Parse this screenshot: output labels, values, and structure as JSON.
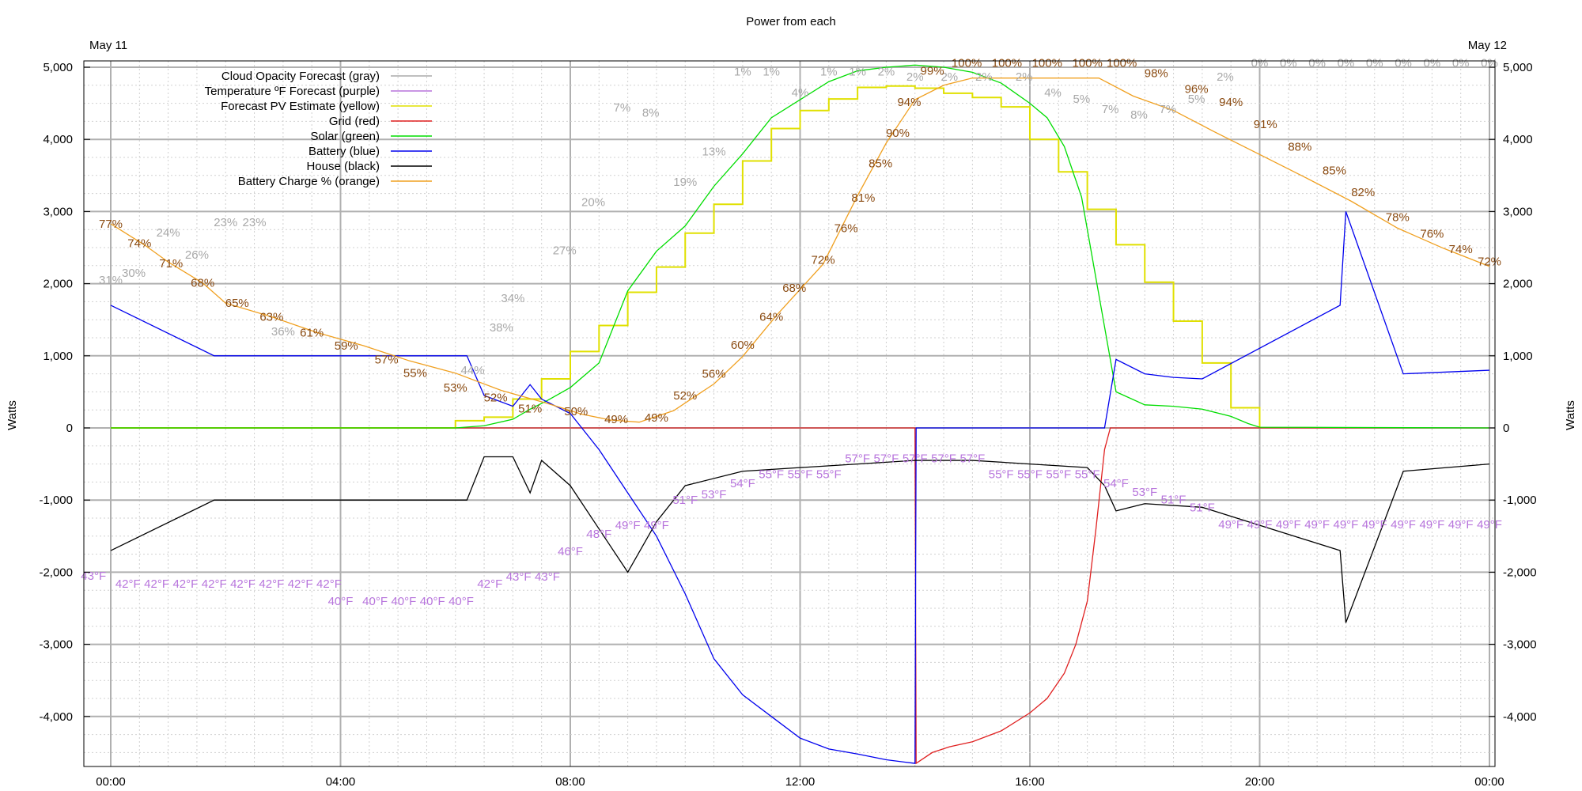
{
  "chart_data": {
    "type": "line",
    "title": "Power from each",
    "date_left": "May 11",
    "date_right": "May 12",
    "ylabel": "Watts",
    "ylim": [
      -4700,
      5050
    ],
    "xlim_hours": [
      0,
      24
    ],
    "y_ticks": [
      {
        "v": 5000,
        "label": "5,000"
      },
      {
        "v": 4000,
        "label": "4,000"
      },
      {
        "v": 3000,
        "label": "3,000"
      },
      {
        "v": 2000,
        "label": "2,000"
      },
      {
        "v": 1000,
        "label": "1,000"
      },
      {
        "v": 0,
        "label": "0"
      },
      {
        "v": -1000,
        "label": "-1,000"
      },
      {
        "v": -2000,
        "label": "-2,000"
      },
      {
        "v": -3000,
        "label": "-3,000"
      },
      {
        "v": -4000,
        "label": "-4,000"
      }
    ],
    "x_ticks": [
      {
        "h": 0,
        "label": "00:00"
      },
      {
        "h": 4,
        "label": "04:00"
      },
      {
        "h": 8,
        "label": "08:00"
      },
      {
        "h": 12,
        "label": "12:00"
      },
      {
        "h": 16,
        "label": "16:00"
      },
      {
        "h": 20,
        "label": "20:00"
      },
      {
        "h": 24,
        "label": "00:00"
      }
    ],
    "grid": true,
    "legend_position": "top-left",
    "series": [
      {
        "name": "Cloud Opacity Forecast (gray)",
        "color": "#aaaaaa",
        "kind": "step-labels"
      },
      {
        "name": "Temperature ºF Forecast (purple)",
        "color": "#b774dc",
        "kind": "step-labels"
      },
      {
        "name": "Forecast PV Estimate (yellow)",
        "color": "#e0e000",
        "kind": "step",
        "x": [
          0,
          6,
          6.5,
          7,
          7.5,
          8,
          8.5,
          9,
          9.5,
          10,
          10.5,
          11,
          11.5,
          12,
          12.5,
          13,
          13.5,
          14,
          14.5,
          15,
          15.5,
          16,
          16.5,
          17,
          17.5,
          18,
          18.5,
          19,
          19.5,
          20
        ],
        "y": [
          0,
          100,
          150,
          400,
          680,
          1060,
          1420,
          1880,
          2230,
          2700,
          3100,
          3700,
          4150,
          4400,
          4560,
          4720,
          4740,
          4710,
          4640,
          4580,
          4450,
          4000,
          3550,
          3030,
          2540,
          2020,
          1480,
          900,
          280,
          0
        ]
      },
      {
        "name": "Grid (red)",
        "color": "#e02020",
        "kind": "line",
        "x": [
          0,
          14,
          14.02,
          14.3,
          14.6,
          15,
          15.5,
          16,
          16.3,
          16.6,
          16.8,
          17,
          17.15,
          17.3,
          17.4,
          24
        ],
        "y": [
          0,
          0,
          -4650,
          -4500,
          -4420,
          -4350,
          -4200,
          -3950,
          -3750,
          -3400,
          -3000,
          -2400,
          -1400,
          -300,
          0,
          0
        ]
      },
      {
        "name": "Solar (green)",
        "color": "#00dd00",
        "kind": "line",
        "x": [
          0,
          6,
          6.5,
          7,
          7.3,
          7.6,
          8,
          8.5,
          9,
          9.5,
          10,
          10.5,
          11,
          11.5,
          12,
          12.5,
          13,
          13.5,
          14,
          14.5,
          15,
          15.5,
          16,
          16.3,
          16.6,
          16.9,
          17.1,
          17.3,
          17.5,
          18,
          18.5,
          19,
          19.5,
          19.8,
          20,
          24
        ],
        "y": [
          0,
          0,
          30,
          120,
          260,
          380,
          560,
          900,
          1900,
          2450,
          2800,
          3350,
          3800,
          4300,
          4550,
          4800,
          4950,
          5000,
          5030,
          5000,
          4930,
          4780,
          4500,
          4300,
          3900,
          3200,
          2300,
          1400,
          500,
          320,
          300,
          260,
          160,
          60,
          10,
          0
        ]
      },
      {
        "name": "Battery (blue)",
        "color": "#0000ee",
        "kind": "line",
        "x": [
          0,
          1.8,
          6.2,
          6.5,
          7,
          7.3,
          7.5,
          8,
          8.5,
          9,
          9.5,
          10,
          10.5,
          11,
          11.5,
          12,
          12.5,
          13,
          13.5,
          14,
          14.02,
          17.3,
          17.5,
          18,
          18.5,
          19,
          21.4,
          21.5,
          22.5,
          24
        ],
        "y": [
          1700,
          1000,
          1000,
          450,
          300,
          600,
          400,
          200,
          -300,
          -900,
          -1500,
          -2300,
          -3200,
          -3700,
          -4000,
          -4300,
          -4450,
          -4520,
          -4600,
          -4650,
          0,
          0,
          950,
          750,
          700,
          680,
          1700,
          3000,
          750,
          800
        ]
      },
      {
        "name": "House (black)",
        "color": "#000000",
        "kind": "line",
        "x": [
          0,
          1.8,
          6.2,
          6.5,
          7,
          7.3,
          7.5,
          8,
          8.5,
          9,
          9.5,
          10,
          11,
          12,
          13,
          14,
          15,
          16,
          17,
          17.3,
          17.5,
          18,
          19,
          21.4,
          21.5,
          22.5,
          24
        ],
        "y": [
          -1700,
          -1000,
          -1000,
          -400,
          -400,
          -900,
          -450,
          -800,
          -1400,
          -2000,
          -1300,
          -800,
          -600,
          -550,
          -500,
          -450,
          -450,
          -500,
          -550,
          -800,
          -1150,
          -1050,
          -1100,
          -1700,
          -2700,
          -600,
          -500
        ]
      },
      {
        "name": "Battery Charge % (orange)",
        "color": "#f0a020",
        "kind": "line",
        "x": [
          0,
          0.6,
          1,
          1.6,
          2,
          2.8,
          3.6,
          4.4,
          5.2,
          6,
          6.8,
          7.6,
          8.2,
          8.7,
          9.2,
          9.8,
          10.5,
          11,
          11.6,
          12.4,
          13,
          13.5,
          14,
          14.5,
          15,
          15.8,
          16.6,
          17.2,
          17.8,
          18.5,
          19.2,
          20,
          20.8,
          21.6,
          22.4,
          23.2,
          24
        ],
        "y": [
          2830,
          2530,
          2300,
          2010,
          1730,
          1540,
          1320,
          1140,
          930,
          760,
          520,
          340,
          190,
          110,
          80,
          240,
          610,
          990,
          1570,
          2270,
          3220,
          3950,
          4550,
          4750,
          4850,
          4850,
          4850,
          4850,
          4600,
          4400,
          4110,
          3790,
          3470,
          3140,
          2770,
          2490,
          2240
        ]
      }
    ],
    "battery_charge_labels": [
      {
        "x": 0,
        "y": 2830,
        "t": "77%"
      },
      {
        "x": 0.5,
        "y": 2560,
        "t": "74%"
      },
      {
        "x": 1.05,
        "y": 2280,
        "t": "71%"
      },
      {
        "x": 1.6,
        "y": 2010,
        "t": "68%"
      },
      {
        "x": 2.2,
        "y": 1730,
        "t": "65%"
      },
      {
        "x": 2.8,
        "y": 1540,
        "t": "63%"
      },
      {
        "x": 3.5,
        "y": 1320,
        "t": "61%"
      },
      {
        "x": 4.1,
        "y": 1140,
        "t": "59%"
      },
      {
        "x": 4.8,
        "y": 950,
        "t": "57%"
      },
      {
        "x": 5.3,
        "y": 760,
        "t": "55%"
      },
      {
        "x": 6,
        "y": 560,
        "t": "53%"
      },
      {
        "x": 6.7,
        "y": 420,
        "t": "52%"
      },
      {
        "x": 7.3,
        "y": 270,
        "t": "51%"
      },
      {
        "x": 8.1,
        "y": 230,
        "t": "50%"
      },
      {
        "x": 8.8,
        "y": 120,
        "t": "49%"
      },
      {
        "x": 9.5,
        "y": 140,
        "t": "49%"
      },
      {
        "x": 10,
        "y": 450,
        "t": "52%"
      },
      {
        "x": 10.5,
        "y": 750,
        "t": "56%"
      },
      {
        "x": 11,
        "y": 1150,
        "t": "60%"
      },
      {
        "x": 11.5,
        "y": 1540,
        "t": "64%"
      },
      {
        "x": 11.9,
        "y": 1940,
        "t": "68%"
      },
      {
        "x": 12.4,
        "y": 2330,
        "t": "72%"
      },
      {
        "x": 12.8,
        "y": 2770,
        "t": "76%"
      },
      {
        "x": 13.1,
        "y": 3190,
        "t": "81%"
      },
      {
        "x": 13.4,
        "y": 3670,
        "t": "85%"
      },
      {
        "x": 13.7,
        "y": 4090,
        "t": "90%"
      },
      {
        "x": 13.9,
        "y": 4520,
        "t": "94%"
      },
      {
        "x": 14.3,
        "y": 4950,
        "t": "99%"
      },
      {
        "x": 14.9,
        "y": 5060,
        "t": "100%"
      },
      {
        "x": 15.6,
        "y": 5060,
        "t": "100%"
      },
      {
        "x": 16.3,
        "y": 5060,
        "t": "100%"
      },
      {
        "x": 17,
        "y": 5060,
        "t": "100%"
      },
      {
        "x": 17.6,
        "y": 5060,
        "t": "100%"
      },
      {
        "x": 18.2,
        "y": 4920,
        "t": "98%"
      },
      {
        "x": 18.9,
        "y": 4700,
        "t": "96%"
      },
      {
        "x": 19.5,
        "y": 4520,
        "t": "94%"
      },
      {
        "x": 20.1,
        "y": 4210,
        "t": "91%"
      },
      {
        "x": 20.7,
        "y": 3900,
        "t": "88%"
      },
      {
        "x": 21.3,
        "y": 3570,
        "t": "85%"
      },
      {
        "x": 21.8,
        "y": 3270,
        "t": "82%"
      },
      {
        "x": 22.4,
        "y": 2920,
        "t": "78%"
      },
      {
        "x": 23,
        "y": 2690,
        "t": "76%"
      },
      {
        "x": 23.5,
        "y": 2480,
        "t": "74%"
      },
      {
        "x": 24,
        "y": 2310,
        "t": "72%"
      }
    ],
    "cloud_opacity_labels": [
      {
        "x": 0,
        "y": 2050,
        "t": "31%"
      },
      {
        "x": 0.4,
        "y": 2150,
        "t": "30%"
      },
      {
        "x": 1,
        "y": 2710,
        "t": "24%"
      },
      {
        "x": 1.5,
        "y": 2400,
        "t": "26%"
      },
      {
        "x": 2,
        "y": 2850,
        "t": "23%"
      },
      {
        "x": 2.5,
        "y": 2850,
        "t": "23%"
      },
      {
        "x": 3,
        "y": 1340,
        "t": "36%"
      },
      {
        "x": 7,
        "y": 1800,
        "t": "34%"
      },
      {
        "x": 6.8,
        "y": 1390,
        "t": "38%"
      },
      {
        "x": 6.3,
        "y": 800,
        "t": "44%"
      },
      {
        "x": 7.9,
        "y": 2460,
        "t": "27%"
      },
      {
        "x": 8.4,
        "y": 3130,
        "t": "20%"
      },
      {
        "x": 8.9,
        "y": 4440,
        "t": "7%"
      },
      {
        "x": 9.4,
        "y": 4370,
        "t": "8%"
      },
      {
        "x": 10,
        "y": 3410,
        "t": "19%"
      },
      {
        "x": 10.5,
        "y": 3830,
        "t": "13%"
      },
      {
        "x": 11,
        "y": 4940,
        "t": "1%"
      },
      {
        "x": 11.5,
        "y": 4940,
        "t": "1%"
      },
      {
        "x": 12,
        "y": 4650,
        "t": "4%"
      },
      {
        "x": 12.5,
        "y": 4940,
        "t": "1%"
      },
      {
        "x": 13,
        "y": 4940,
        "t": "1%"
      },
      {
        "x": 13.5,
        "y": 4940,
        "t": "2%"
      },
      {
        "x": 14,
        "y": 4870,
        "t": "2%"
      },
      {
        "x": 14.6,
        "y": 4870,
        "t": "2%"
      },
      {
        "x": 15.2,
        "y": 4870,
        "t": "2%"
      },
      {
        "x": 15.9,
        "y": 4870,
        "t": "2%"
      },
      {
        "x": 16.4,
        "y": 4650,
        "t": "4%"
      },
      {
        "x": 16.9,
        "y": 4560,
        "t": "5%"
      },
      {
        "x": 17.4,
        "y": 4420,
        "t": "7%"
      },
      {
        "x": 17.9,
        "y": 4340,
        "t": "8%"
      },
      {
        "x": 18.4,
        "y": 4420,
        "t": "7%"
      },
      {
        "x": 18.9,
        "y": 4560,
        "t": "5%"
      },
      {
        "x": 19.4,
        "y": 4870,
        "t": "2%"
      },
      {
        "x": 20,
        "y": 5060,
        "t": "0%"
      },
      {
        "x": 20.5,
        "y": 5060,
        "t": "0%"
      },
      {
        "x": 21,
        "y": 5060,
        "t": "0%"
      },
      {
        "x": 21.5,
        "y": 5060,
        "t": "0%"
      },
      {
        "x": 22,
        "y": 5060,
        "t": "0%"
      },
      {
        "x": 22.5,
        "y": 5060,
        "t": "0%"
      },
      {
        "x": 23,
        "y": 5060,
        "t": "0%"
      },
      {
        "x": 23.5,
        "y": 5060,
        "t": "0%"
      },
      {
        "x": 24,
        "y": 5060,
        "t": "0%"
      }
    ],
    "temperature_labels": [
      {
        "x": -0.3,
        "y": -2050,
        "t": "43°F"
      },
      {
        "x": 0.3,
        "y": -2160,
        "t": "42°F"
      },
      {
        "x": 0.8,
        "y": -2160,
        "t": "42°F"
      },
      {
        "x": 1.3,
        "y": -2160,
        "t": "42°F"
      },
      {
        "x": 1.8,
        "y": -2160,
        "t": "42°F"
      },
      {
        "x": 2.3,
        "y": -2160,
        "t": "42°F"
      },
      {
        "x": 2.8,
        "y": -2160,
        "t": "42°F"
      },
      {
        "x": 3.3,
        "y": -2160,
        "t": "42°F"
      },
      {
        "x": 3.8,
        "y": -2160,
        "t": "42°F"
      },
      {
        "x": 4,
        "y": -2400,
        "t": "40°F"
      },
      {
        "x": 4.6,
        "y": -2400,
        "t": "40°F"
      },
      {
        "x": 5.1,
        "y": -2400,
        "t": "40°F"
      },
      {
        "x": 5.6,
        "y": -2400,
        "t": "40°F"
      },
      {
        "x": 6.1,
        "y": -2400,
        "t": "40°F"
      },
      {
        "x": 6.6,
        "y": -2160,
        "t": "42°F"
      },
      {
        "x": 7.1,
        "y": -2060,
        "t": "43°F"
      },
      {
        "x": 7.6,
        "y": -2060,
        "t": "43°F"
      },
      {
        "x": 8,
        "y": -1710,
        "t": "46°F"
      },
      {
        "x": 8.5,
        "y": -1470,
        "t": "48°F"
      },
      {
        "x": 9,
        "y": -1350,
        "t": "49°F"
      },
      {
        "x": 9.5,
        "y": -1350,
        "t": "49°F"
      },
      {
        "x": 10,
        "y": -1000,
        "t": "51°F"
      },
      {
        "x": 10.5,
        "y": -920,
        "t": "53°F"
      },
      {
        "x": 11,
        "y": -770,
        "t": "54°F"
      },
      {
        "x": 11.5,
        "y": -640,
        "t": "55°F"
      },
      {
        "x": 12,
        "y": -640,
        "t": "55°F"
      },
      {
        "x": 12.5,
        "y": -640,
        "t": "55°F"
      },
      {
        "x": 13,
        "y": -420,
        "t": "57°F"
      },
      {
        "x": 13.5,
        "y": -420,
        "t": "57°F"
      },
      {
        "x": 14,
        "y": -420,
        "t": "57°F"
      },
      {
        "x": 14.5,
        "y": -420,
        "t": "57°F"
      },
      {
        "x": 15,
        "y": -420,
        "t": "57°F"
      },
      {
        "x": 15.5,
        "y": -640,
        "t": "55°F"
      },
      {
        "x": 16,
        "y": -640,
        "t": "55°F"
      },
      {
        "x": 16.5,
        "y": -640,
        "t": "55°F"
      },
      {
        "x": 17,
        "y": -640,
        "t": "55°F"
      },
      {
        "x": 17.5,
        "y": -770,
        "t": "54°F"
      },
      {
        "x": 18,
        "y": -890,
        "t": "53°F"
      },
      {
        "x": 18.5,
        "y": -990,
        "t": "51°F"
      },
      {
        "x": 19,
        "y": -1100,
        "t": "51°F"
      },
      {
        "x": 19.5,
        "y": -1340,
        "t": "49°F"
      },
      {
        "x": 20,
        "y": -1340,
        "t": "49°F"
      },
      {
        "x": 20.5,
        "y": -1340,
        "t": "49°F"
      },
      {
        "x": 21,
        "y": -1340,
        "t": "49°F"
      },
      {
        "x": 21.5,
        "y": -1340,
        "t": "49°F"
      },
      {
        "x": 22,
        "y": -1340,
        "t": "49°F"
      },
      {
        "x": 22.5,
        "y": -1340,
        "t": "49°F"
      },
      {
        "x": 23,
        "y": -1340,
        "t": "49°F"
      },
      {
        "x": 23.5,
        "y": -1340,
        "t": "49°F"
      },
      {
        "x": 24,
        "y": -1340,
        "t": "49°F"
      }
    ]
  }
}
